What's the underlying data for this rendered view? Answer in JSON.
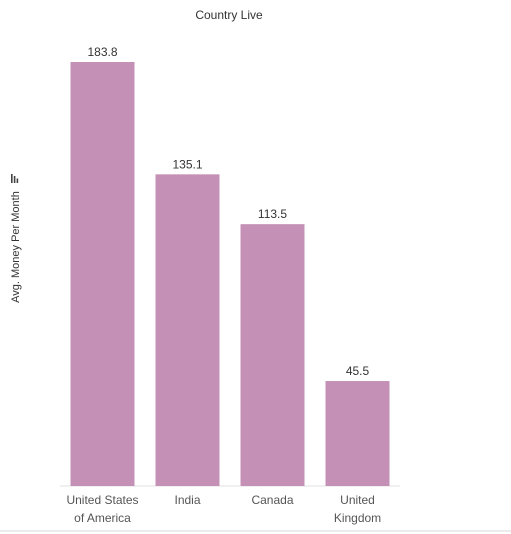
{
  "chart_data": {
    "type": "bar",
    "title": "Country Live",
    "ylabel": "Avg. Money Per Month",
    "xlabel": "",
    "categories": [
      [
        "United States",
        "of America"
      ],
      [
        "India"
      ],
      [
        "Canada"
      ],
      [
        "United",
        "Kingdom"
      ]
    ],
    "values": [
      183.8,
      135.1,
      113.5,
      45.5
    ],
    "value_labels": [
      "183.8",
      "135.1",
      "113.5",
      "45.5"
    ],
    "ylim": [
      0,
      200
    ],
    "grid": false,
    "legend": "none",
    "colors": {
      "bar": "#c490b5",
      "axis": "#e2e2e2",
      "bottom_rule": "#d9d9d9"
    },
    "sort_icon": "sort-descending-icon"
  }
}
